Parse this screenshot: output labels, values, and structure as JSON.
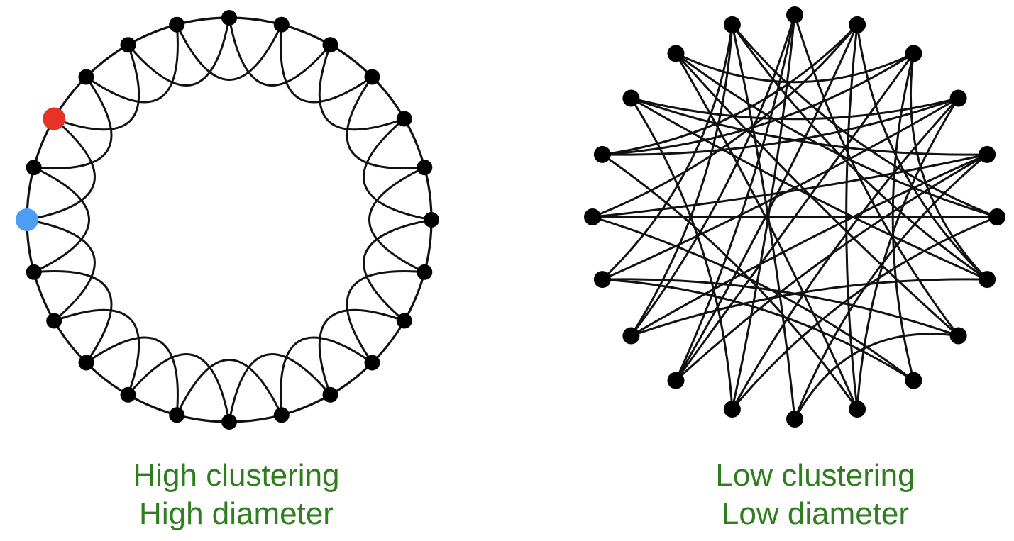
{
  "colors": {
    "caption": "#2e7d1e",
    "edge": "#111111",
    "node": "#000000",
    "highlight_start": "#4a9ff5",
    "highlight_end": "#e53427"
  },
  "graphs": [
    {
      "id": "regular-ring",
      "node_count": 24,
      "neighbors_each_side": 2,
      "highlight_nodes": {
        "start": 0,
        "end": 22
      },
      "caption": [
        "High clustering",
        "High diameter"
      ]
    },
    {
      "id": "random-graph",
      "node_count": 20,
      "edges": [
        [
          0,
          7
        ],
        [
          0,
          11
        ],
        [
          0,
          13
        ],
        [
          1,
          6
        ],
        [
          1,
          12
        ],
        [
          1,
          16
        ],
        [
          2,
          8
        ],
        [
          2,
          12
        ],
        [
          2,
          16
        ],
        [
          2,
          18
        ],
        [
          3,
          9
        ],
        [
          3,
          14
        ],
        [
          3,
          16
        ],
        [
          4,
          10
        ],
        [
          4,
          17
        ],
        [
          4,
          13
        ],
        [
          5,
          11
        ],
        [
          5,
          15
        ],
        [
          5,
          19
        ],
        [
          6,
          13
        ],
        [
          6,
          17
        ],
        [
          7,
          14
        ],
        [
          7,
          18
        ],
        [
          8,
          15
        ],
        [
          9,
          18
        ],
        [
          10,
          19
        ],
        [
          11,
          17
        ],
        [
          12,
          4
        ],
        [
          13,
          19
        ],
        [
          14,
          8
        ],
        [
          15,
          1
        ],
        [
          16,
          9
        ],
        [
          17,
          3
        ],
        [
          18,
          5
        ],
        [
          19,
          6
        ],
        [
          0,
          12
        ],
        [
          2,
          6
        ],
        [
          3,
          11
        ],
        [
          7,
          10
        ],
        [
          1,
          9
        ],
        [
          4,
          15
        ],
        [
          14,
          19
        ]
      ],
      "caption": [
        "Low clustering",
        "Low diameter"
      ]
    }
  ]
}
